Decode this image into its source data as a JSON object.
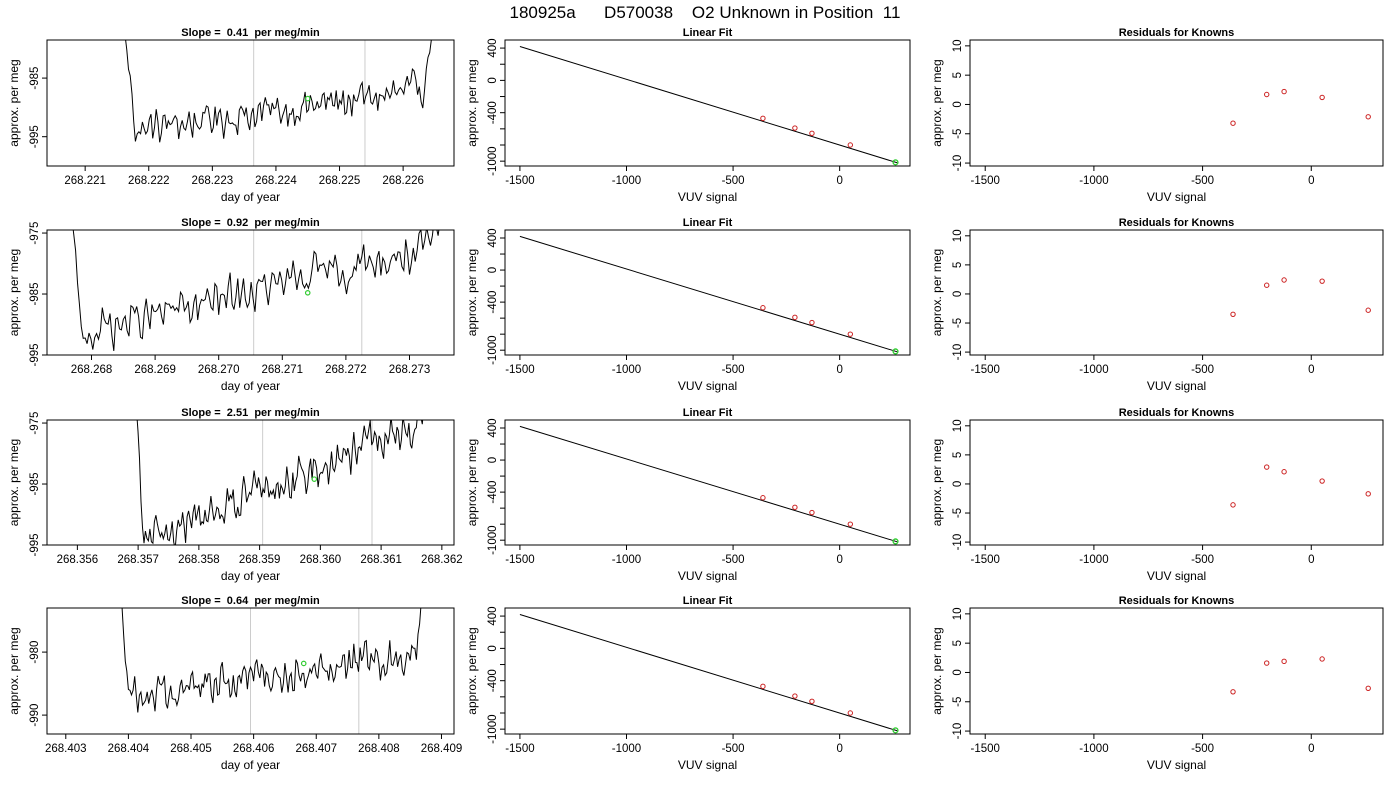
{
  "main_title": "180925a      D570038    O2 Unknown in Position  11",
  "colors": {
    "trace": "#000000",
    "unknown_point": "#33cc33",
    "known_point": "#cc2222",
    "marker_line": "#cccccc",
    "axis": "#000000"
  },
  "chart_data": [
    {
      "type": "line",
      "panel": "time-series-1",
      "title": "Slope =  0.41  per meg/min",
      "xlabel": "day of year",
      "ylabel": "approx. per meg",
      "xlim": [
        268.2204,
        268.2268
      ],
      "ylim": [
        -1000,
        -978.5
      ],
      "xticks": [
        "268.221",
        "268.222",
        "268.223",
        "268.224",
        "268.225",
        "268.226"
      ],
      "yticks": [
        "-985",
        "-995"
      ],
      "x_start": 268.2216,
      "x_end": 268.2265,
      "n_points": 180,
      "markers": [
        268.22365,
        268.2254
      ],
      "unknown_point": {
        "x": 268.2245,
        "y": -988.5
      },
      "baseline": -990.5,
      "trend_per_unit": 0.9,
      "noise": 2.0,
      "left_wall_start": -975,
      "right_wall_end": -975
    },
    {
      "type": "bar",
      "panel": "linear-fit-1",
      "title": "Linear Fit",
      "xlabel": "VUV signal",
      "ylabel": "approx. per meg",
      "xlim": [
        -1570,
        330
      ],
      "ylim": [
        -1060,
        500
      ],
      "xticks": [
        "-1500",
        "-1000",
        "-500",
        "0"
      ],
      "yticks": [
        "400",
        "0",
        "-400",
        "-1000"
      ],
      "fit_line": [
        [
          -1500,
          420
        ],
        [
          270,
          -1020
        ]
      ],
      "knowns": [
        [
          -360,
          -470
        ],
        [
          -210,
          -590
        ],
        [
          -130,
          -655
        ],
        [
          50,
          -800
        ]
      ],
      "unknown": [
        262,
        -1015
      ]
    },
    {
      "type": "scatter",
      "panel": "residuals-1",
      "title": "Residuals for Knowns",
      "xlabel": "VUV signal",
      "ylabel": "approx. per meg",
      "xlim": [
        -1570,
        330
      ],
      "ylim": [
        -10.5,
        11
      ],
      "xticks": [
        "-1500",
        "-1000",
        "-500",
        "0"
      ],
      "yticks": [
        "10",
        "5",
        "0",
        "-5",
        "-10"
      ],
      "points": [
        [
          -360,
          -3.2
        ],
        [
          -205,
          1.7
        ],
        [
          -125,
          2.2
        ],
        [
          50,
          1.2
        ],
        [
          262,
          -2.1
        ]
      ]
    },
    {
      "type": "line",
      "panel": "time-series-2",
      "title": "Slope =  0.92  per meg/min",
      "xlabel": "day of year",
      "ylabel": "approx. per meg",
      "xlim": [
        268.2673,
        268.2737
      ],
      "ylim": [
        -995,
        -974.5
      ],
      "xticks": [
        "268.268",
        "268.269",
        "268.270",
        "268.271",
        "268.272",
        "268.273"
      ],
      "yticks": [
        "-975",
        "-985",
        "-995"
      ],
      "x_start": 268.2676,
      "x_end": 268.2736,
      "n_points": 200,
      "markers": [
        268.27055,
        268.27225
      ],
      "unknown_point": {
        "x": 268.2714,
        "y": -984.8
      },
      "baseline": -984.5,
      "trend_per_unit": 1.9,
      "noise": 2.2,
      "left_wall_start": -960,
      "right_wall_end": -970
    },
    {
      "type": "bar",
      "panel": "linear-fit-2",
      "title": "Linear Fit",
      "xlabel": "VUV signal",
      "ylabel": "approx. per meg",
      "xlim": [
        -1570,
        330
      ],
      "ylim": [
        -1060,
        500
      ],
      "xticks": [
        "-1500",
        "-1000",
        "-500",
        "0"
      ],
      "yticks": [
        "400",
        "0",
        "-400",
        "-1000"
      ],
      "fit_line": [
        [
          -1500,
          420
        ],
        [
          270,
          -1020
        ]
      ],
      "knowns": [
        [
          -360,
          -470
        ],
        [
          -210,
          -590
        ],
        [
          -130,
          -655
        ],
        [
          50,
          -800
        ]
      ],
      "unknown": [
        262,
        -1015
      ]
    },
    {
      "type": "scatter",
      "panel": "residuals-2",
      "title": "Residuals for Knowns",
      "xlabel": "VUV signal",
      "ylabel": "approx. per meg",
      "xlim": [
        -1570,
        330
      ],
      "ylim": [
        -10.5,
        11
      ],
      "xticks": [
        "-1500",
        "-1000",
        "-500",
        "0"
      ],
      "yticks": [
        "10",
        "5",
        "0",
        "-5",
        "-10"
      ],
      "points": [
        [
          -360,
          -3.5
        ],
        [
          -205,
          1.5
        ],
        [
          -125,
          2.4
        ],
        [
          50,
          2.2
        ],
        [
          262,
          -2.8
        ]
      ]
    },
    {
      "type": "line",
      "panel": "time-series-3",
      "title": "Slope =  2.51  per meg/min",
      "xlabel": "day of year",
      "ylabel": "approx. per meg",
      "xlim": [
        268.3555,
        268.3622
      ],
      "ylim": [
        -995,
        -974.5
      ],
      "xticks": [
        "268.356",
        "268.357",
        "268.358",
        "268.359",
        "268.360",
        "268.361",
        "268.362"
      ],
      "yticks": [
        "-975",
        "-985",
        "-995"
      ],
      "x_start": 268.3569,
      "x_end": 268.3618,
      "n_points": 200,
      "markers": [
        268.35905,
        268.36085
      ],
      "unknown_point": {
        "x": 268.3599,
        "y": -984.2
      },
      "baseline": -985.0,
      "trend_per_unit": 2.6,
      "noise": 2.2,
      "left_wall_start": -960,
      "right_wall_end": -970
    },
    {
      "type": "bar",
      "panel": "linear-fit-3",
      "title": "Linear Fit",
      "xlabel": "VUV signal",
      "ylabel": "approx. per meg",
      "xlim": [
        -1570,
        330
      ],
      "ylim": [
        -1060,
        500
      ],
      "xticks": [
        "-1500",
        "-1000",
        "-500",
        "0"
      ],
      "yticks": [
        "400",
        "0",
        "-400",
        "-1000"
      ],
      "fit_line": [
        [
          -1500,
          420
        ],
        [
          270,
          -1020
        ]
      ],
      "knowns": [
        [
          -360,
          -470
        ],
        [
          -210,
          -590
        ],
        [
          -130,
          -655
        ],
        [
          50,
          -800
        ]
      ],
      "unknown": [
        262,
        -1015
      ]
    },
    {
      "type": "scatter",
      "panel": "residuals-3",
      "title": "Residuals for Knowns",
      "xlabel": "VUV signal",
      "ylabel": "approx. per meg",
      "xlim": [
        -1570,
        330
      ],
      "ylim": [
        -10.5,
        11
      ],
      "xticks": [
        "-1500",
        "-1000",
        "-500",
        "0"
      ],
      "yticks": [
        "10",
        "5",
        "0",
        "-5",
        "-10"
      ],
      "points": [
        [
          -360,
          -3.6
        ],
        [
          -205,
          2.9
        ],
        [
          -125,
          2.1
        ],
        [
          50,
          0.5
        ],
        [
          262,
          -1.7
        ]
      ]
    },
    {
      "type": "line",
      "panel": "time-series-4",
      "title": "Slope =  0.64  per meg/min",
      "xlabel": "day of year",
      "ylabel": "approx. per meg",
      "xlim": [
        268.4027,
        268.4092
      ],
      "ylim": [
        -993,
        -973
      ],
      "xticks": [
        "268.403",
        "268.404",
        "268.405",
        "268.406",
        "268.407",
        "268.408",
        "268.409"
      ],
      "yticks": [
        "-980",
        "-990"
      ],
      "x_start": 268.4038,
      "x_end": 268.4088,
      "n_points": 200,
      "markers": [
        268.40595,
        268.40768
      ],
      "unknown_point": {
        "x": 268.4068,
        "y": -981.8
      },
      "baseline": -983.5,
      "trend_per_unit": 1.0,
      "noise": 2.0,
      "left_wall_start": -960,
      "right_wall_end": -960
    },
    {
      "type": "bar",
      "panel": "linear-fit-4",
      "title": "Linear Fit",
      "xlabel": "VUV signal",
      "ylabel": "approx. per meg",
      "xlim": [
        -1570,
        330
      ],
      "ylim": [
        -1060,
        500
      ],
      "xticks": [
        "-1500",
        "-1000",
        "-500",
        "0"
      ],
      "yticks": [
        "400",
        "0",
        "-400",
        "-1000"
      ],
      "fit_line": [
        [
          -1500,
          420
        ],
        [
          270,
          -1020
        ]
      ],
      "knowns": [
        [
          -360,
          -470
        ],
        [
          -210,
          -590
        ],
        [
          -130,
          -655
        ],
        [
          50,
          -800
        ]
      ],
      "unknown": [
        262,
        -1015
      ]
    },
    {
      "type": "scatter",
      "panel": "residuals-4",
      "title": "Residuals for Knowns",
      "xlabel": "VUV signal",
      "ylabel": "approx. per meg",
      "xlim": [
        -1570,
        330
      ],
      "ylim": [
        -10.5,
        11
      ],
      "xticks": [
        "-1500",
        "-1000",
        "-500",
        "0"
      ],
      "yticks": [
        "10",
        "5",
        "0",
        "-5",
        "-10"
      ],
      "points": [
        [
          -360,
          -3.3
        ],
        [
          -205,
          1.6
        ],
        [
          -125,
          1.9
        ],
        [
          50,
          2.3
        ],
        [
          262,
          -2.7
        ]
      ]
    }
  ]
}
